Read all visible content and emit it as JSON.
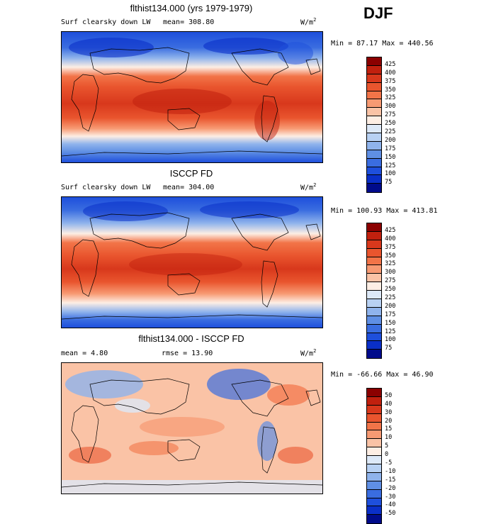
{
  "season": "DJF",
  "panels": [
    {
      "title": "flthist134.000 (yrs 1979-1979)",
      "variable": "Surf clearsky down LW",
      "mean_label": "mean= 308.80",
      "units_base": "W/m",
      "units_exp": "2",
      "minmax": "Min =  87.17 Max = 440.56",
      "colorbar_labels": [
        "425",
        "400",
        "375",
        "350",
        "325",
        "300",
        "275",
        "250",
        "225",
        "200",
        "175",
        "150",
        "125",
        "100",
        "75"
      ]
    },
    {
      "title": "ISCCP FD",
      "variable": "Surf clearsky down LW",
      "mean_label": "mean= 304.00",
      "units_base": "W/m",
      "units_exp": "2",
      "minmax": "Min = 100.93 Max = 413.81",
      "colorbar_labels": [
        "425",
        "400",
        "375",
        "350",
        "325",
        "300",
        "275",
        "250",
        "225",
        "200",
        "175",
        "150",
        "125",
        "100",
        "75"
      ]
    },
    {
      "title": "flthist134.000 - ISCCP FD",
      "mean_label": "mean =   4.80",
      "rmse_label": "rmse =  13.90",
      "units_base": "W/m",
      "units_exp": "2",
      "minmax": "Min = -66.66 Max =  46.90",
      "colorbar_labels": [
        "50",
        "40",
        "30",
        "20",
        "15",
        "10",
        "5",
        "0",
        "-5",
        "-10",
        "-15",
        "-20",
        "-30",
        "-40",
        "-50"
      ]
    }
  ],
  "colors": {
    "abs_scale": [
      "#8b0000",
      "#c1200e",
      "#d8381c",
      "#e9552e",
      "#f27448",
      "#f79a73",
      "#fac3a6",
      "#fdeee4",
      "#dde9f8",
      "#b8d1f3",
      "#8fb3ec",
      "#5f8fe4",
      "#3a6de0",
      "#1e4fdc",
      "#0a2fc8",
      "#000b8b"
    ],
    "diff_scale": [
      "#8b0000",
      "#c1200e",
      "#d8381c",
      "#e9552e",
      "#f27448",
      "#f79a73",
      "#fac3a6",
      "#fdeee4",
      "#dde9f8",
      "#b8d1f3",
      "#8fb3ec",
      "#5f8fe4",
      "#3a6de0",
      "#1e4fdc",
      "#0a2fc8",
      "#000b8b"
    ]
  }
}
